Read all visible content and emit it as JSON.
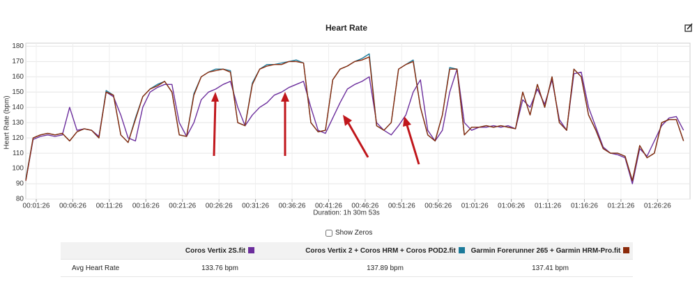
{
  "chart_data": {
    "type": "line",
    "title": "Heart Rate",
    "x_label": "Duration: 1h 30m 53s",
    "y_label": "Heart Rate (bpm)",
    "x": [
      0,
      60,
      120,
      180,
      240,
      300,
      360,
      420,
      480,
      540,
      600,
      660,
      720,
      780,
      840,
      900,
      960,
      1020,
      1080,
      1140,
      1200,
      1260,
      1320,
      1380,
      1440,
      1500,
      1560,
      1620,
      1680,
      1740,
      1800,
      1860,
      1920,
      1980,
      2040,
      2100,
      2160,
      2220,
      2280,
      2340,
      2400,
      2460,
      2520,
      2580,
      2640,
      2700,
      2760,
      2820,
      2880,
      2940,
      3000,
      3060,
      3120,
      3180,
      3240,
      3300,
      3360,
      3420,
      3480,
      3540,
      3600,
      3660,
      3720,
      3780,
      3840,
      3900,
      3960,
      4020,
      4080,
      4140,
      4200,
      4260,
      4320,
      4380,
      4440,
      4500,
      4560,
      4620,
      4680,
      4740,
      4800,
      4860,
      4920,
      4980,
      5040,
      5100,
      5160,
      5220,
      5280,
      5340,
      5400
    ],
    "series": [
      {
        "name": "Coros Vertix 2S.fit",
        "color": "#6b2d9c",
        "values": [
          92,
          119,
          121,
          122,
          121,
          122,
          140,
          125,
          126,
          125,
          121,
          150,
          147,
          135,
          120,
          118,
          140,
          150,
          153,
          155,
          155,
          130,
          121,
          130,
          145,
          150,
          152,
          155,
          157,
          140,
          128,
          135,
          140,
          143,
          148,
          150,
          153,
          155,
          157,
          140,
          125,
          123,
          133,
          143,
          152,
          155,
          157,
          160,
          130,
          125,
          122,
          128,
          135,
          150,
          158,
          125,
          118,
          125,
          150,
          165,
          130,
          125,
          127,
          127,
          128,
          127,
          128,
          126,
          145,
          140,
          152,
          142,
          158,
          132,
          125,
          162,
          163,
          140,
          127,
          114,
          110,
          109,
          107,
          90,
          113,
          108,
          118,
          128,
          133,
          134,
          125
        ]
      },
      {
        "name": "Coros Vertix 2 + Coros HRM + Coros POD2.fit",
        "color": "#1b7a9a",
        "values": [
          93,
          120,
          122,
          123,
          122,
          123,
          118,
          124,
          126,
          125,
          120,
          151,
          148,
          122,
          117,
          133,
          147,
          152,
          155,
          157,
          150,
          122,
          121,
          149,
          160,
          163,
          165,
          165,
          164,
          130,
          128,
          156,
          165,
          168,
          168,
          169,
          170,
          171,
          169,
          130,
          124,
          125,
          158,
          165,
          167,
          170,
          172,
          175,
          128,
          125,
          130,
          165,
          168,
          171,
          140,
          122,
          118,
          135,
          166,
          165,
          122,
          127,
          127,
          128,
          127,
          128,
          127,
          126,
          150,
          135,
          155,
          140,
          160,
          130,
          125,
          165,
          160,
          135,
          125,
          113,
          110,
          110,
          108,
          92,
          115,
          107,
          110,
          130,
          132,
          132,
          118
        ]
      },
      {
        "name": "Garmin Forerunner 265 + Garmin HRM-Pro.fit",
        "color": "#8b2a0a",
        "values": [
          92,
          120,
          122,
          123,
          122,
          123,
          118,
          124,
          126,
          125,
          120,
          150,
          148,
          122,
          117,
          132,
          147,
          152,
          154,
          157,
          150,
          122,
          121,
          148,
          160,
          163,
          164,
          165,
          163,
          130,
          128,
          155,
          165,
          167,
          168,
          168,
          170,
          170,
          169,
          130,
          124,
          125,
          158,
          165,
          167,
          170,
          171,
          173,
          128,
          125,
          130,
          165,
          168,
          170,
          140,
          122,
          118,
          135,
          165,
          165,
          122,
          127,
          127,
          128,
          127,
          128,
          127,
          126,
          150,
          135,
          155,
          140,
          160,
          130,
          125,
          165,
          160,
          135,
          125,
          113,
          110,
          110,
          108,
          92,
          115,
          107,
          110,
          130,
          132,
          132,
          118
        ]
      }
    ],
    "xlim": [
      0,
      5453
    ],
    "ylim": [
      80,
      182
    ],
    "yticks": [
      80,
      90,
      100,
      110,
      120,
      130,
      140,
      150,
      160,
      170,
      180
    ],
    "xticks": [
      {
        "value": 86,
        "label": "00:01:26"
      },
      {
        "value": 386,
        "label": "00:06:26"
      },
      {
        "value": 686,
        "label": "00:11:26"
      },
      {
        "value": 986,
        "label": "00:16:26"
      },
      {
        "value": 1286,
        "label": "00:21:26"
      },
      {
        "value": 1586,
        "label": "00:26:26"
      },
      {
        "value": 1886,
        "label": "00:31:26"
      },
      {
        "value": 2186,
        "label": "00:36:26"
      },
      {
        "value": 2486,
        "label": "00:41:26"
      },
      {
        "value": 2786,
        "label": "00:46:26"
      },
      {
        "value": 3086,
        "label": "00:51:26"
      },
      {
        "value": 3386,
        "label": "00:56:26"
      },
      {
        "value": 3686,
        "label": "01:01:26"
      },
      {
        "value": 3986,
        "label": "01:06:26"
      },
      {
        "value": 4286,
        "label": "01:11:26"
      },
      {
        "value": 4586,
        "label": "01:16:26"
      },
      {
        "value": 4886,
        "label": "01:21:26"
      },
      {
        "value": 5186,
        "label": "01:26:26"
      }
    ],
    "grid": true
  },
  "controls": {
    "show_zeros": "Show Zeros"
  },
  "summary_table": {
    "row_label": "Avg Heart Rate",
    "cells": [
      "133.76 bpm",
      "137.89 bpm",
      "137.41 bpm"
    ]
  }
}
